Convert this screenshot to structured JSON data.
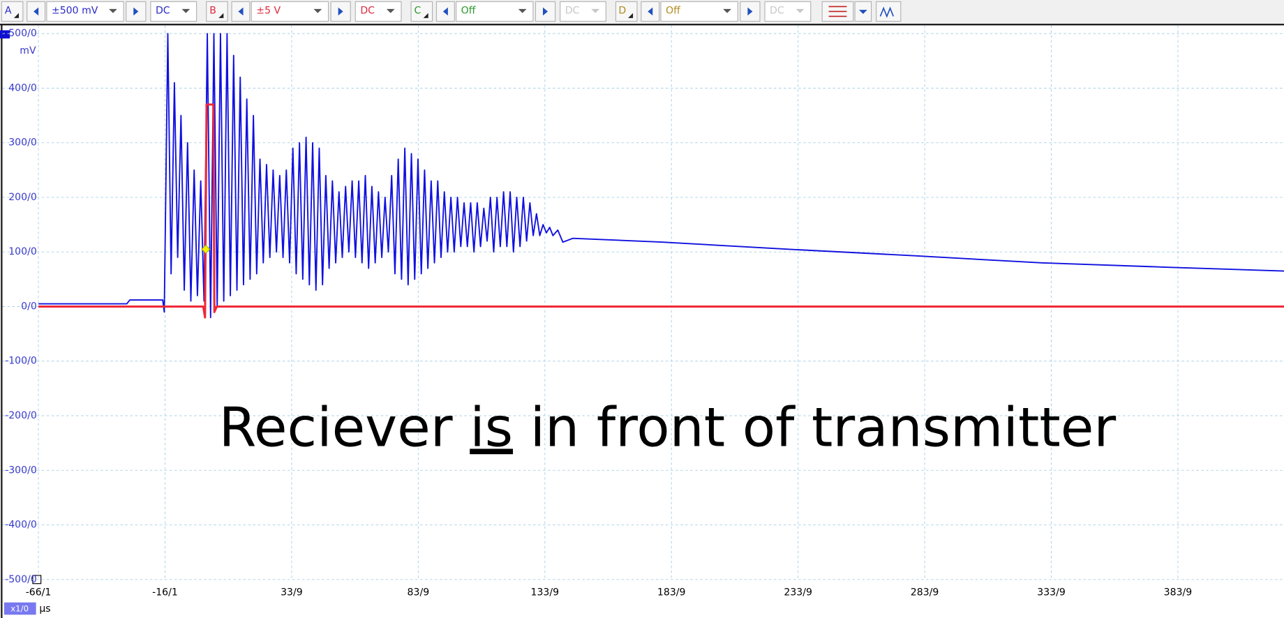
{
  "toolbar": {
    "channels": [
      {
        "name": "A",
        "range": "±500 mV",
        "coupling": "DC",
        "color": "#2a2ac8",
        "enabled": true
      },
      {
        "name": "B",
        "range": "±5 V",
        "coupling": "DC",
        "color": "#e0283c",
        "enabled": true
      },
      {
        "name": "C",
        "range": "Off",
        "coupling": "DC",
        "color": "#2a9a2a",
        "enabled": false
      },
      {
        "name": "D",
        "range": "Off",
        "coupling": "DC",
        "color": "#b08a20",
        "enabled": false
      }
    ]
  },
  "chart_data": {
    "type": "line",
    "y_unit": "mV",
    "x_unit": "μs",
    "zoom": "x1/0",
    "annotation": [
      "Reciever ",
      "is",
      " in front of transmitter"
    ],
    "xlim": [
      -80.3,
      425.8
    ],
    "ylim": [
      -500,
      500
    ],
    "grid": true,
    "xticks": [
      {
        "value": -66.1,
        "label": "-66/1"
      },
      {
        "value": -16.1,
        "label": "-16/1"
      },
      {
        "value": 33.9,
        "label": "33/9"
      },
      {
        "value": 83.9,
        "label": "83/9"
      },
      {
        "value": 133.9,
        "label": "133/9"
      },
      {
        "value": 183.9,
        "label": "183/9"
      },
      {
        "value": 233.9,
        "label": "233/9"
      },
      {
        "value": 283.9,
        "label": "283/9"
      },
      {
        "value": 333.9,
        "label": "333/9"
      },
      {
        "value": 383.9,
        "label": "383/9"
      }
    ],
    "yticks": [
      {
        "value": 500,
        "label": "500/0"
      },
      {
        "value": 400,
        "label": "400/0"
      },
      {
        "value": 300,
        "label": "300/0"
      },
      {
        "value": 200,
        "label": "200/0"
      },
      {
        "value": 100,
        "label": "100/0"
      },
      {
        "value": 0,
        "label": "0/0"
      },
      {
        "value": -100,
        "label": "-100/0"
      },
      {
        "value": -200,
        "label": "-200/0"
      },
      {
        "value": -300,
        "label": "-300/0"
      },
      {
        "value": -400,
        "label": "-400/0"
      },
      {
        "value": -500,
        "label": "-500/0"
      }
    ],
    "series": [
      {
        "name": "A",
        "color": "#1010e0",
        "width": 1.6,
        "x": [
          -66.1,
          -31.2,
          -30.0,
          -17.0,
          -16.4,
          -15.0,
          -13.7,
          -12.4,
          -11.1,
          -9.8,
          -8.5,
          -7.2,
          -5.9,
          -4.6,
          -3.3,
          -2.0,
          -0.7,
          0.6,
          1.9,
          3.2,
          4.5,
          5.8,
          7.1,
          8.4,
          9.7,
          11.0,
          12.3,
          13.6,
          14.9,
          16.2,
          17.5,
          18.8,
          20.1,
          21.4,
          22.7,
          24.0,
          25.3,
          26.6,
          27.9,
          29.2,
          30.5,
          31.8,
          33.1,
          34.4,
          35.7,
          37.0,
          38.3,
          39.6,
          40.9,
          42.2,
          43.5,
          44.8,
          46.1,
          47.4,
          48.7,
          50.0,
          51.3,
          52.6,
          53.9,
          55.2,
          56.5,
          57.8,
          59.1,
          60.4,
          61.7,
          63.0,
          64.3,
          65.6,
          66.9,
          68.2,
          69.5,
          70.8,
          72.1,
          73.4,
          74.7,
          76.0,
          77.3,
          78.6,
          79.9,
          81.2,
          82.5,
          83.8,
          85.1,
          86.4,
          87.7,
          89.0,
          90.3,
          91.6,
          92.9,
          94.2,
          95.5,
          96.8,
          98.1,
          99.4,
          100.7,
          102.0,
          103.3,
          104.6,
          105.9,
          107.2,
          108.5,
          109.8,
          111.1,
          112.4,
          113.7,
          115.0,
          116.3,
          117.6,
          118.9,
          120.2,
          121.5,
          122.8,
          124.1,
          125.4,
          126.7,
          128.0,
          129.3,
          130.6,
          131.9,
          133.2,
          134.5,
          135.8,
          137.1,
          139.0,
          141.0,
          145.0,
          180.0,
          230.0,
          280.0,
          330.0,
          380.0,
          425.8
        ],
        "values": [
          5,
          5,
          12,
          12,
          -10,
          500,
          60,
          410,
          90,
          350,
          30,
          300,
          10,
          250,
          20,
          230,
          10,
          500,
          -20,
          500,
          0,
          500,
          10,
          500,
          20,
          460,
          30,
          420,
          40,
          380,
          50,
          350,
          60,
          270,
          80,
          260,
          90,
          250,
          100,
          240,
          90,
          250,
          80,
          290,
          60,
          300,
          50,
          310,
          40,
          300,
          30,
          290,
          40,
          240,
          70,
          230,
          80,
          210,
          90,
          220,
          100,
          230,
          90,
          230,
          80,
          240,
          70,
          220,
          80,
          210,
          90,
          200,
          100,
          240,
          60,
          270,
          50,
          290,
          40,
          280,
          50,
          270,
          60,
          250,
          70,
          230,
          80,
          230,
          90,
          210,
          100,
          200,
          100,
          200,
          110,
          190,
          110,
          190,
          100,
          190,
          110,
          180,
          120,
          200,
          100,
          200,
          110,
          210,
          110,
          210,
          100,
          200,
          110,
          200,
          120,
          190,
          130,
          170,
          130,
          150,
          135,
          145,
          130,
          140,
          118,
          125,
          118,
          105,
          93,
          80,
          72,
          65
        ]
      },
      {
        "name": "B",
        "color": "#f02838",
        "width": 2.6,
        "x": [
          -66.1,
          -1.0,
          -0.3,
          0.3,
          3.0,
          3.4,
          4.3,
          425.8
        ],
        "values": [
          0,
          0,
          -20,
          370,
          370,
          -10,
          0,
          0
        ]
      }
    ],
    "trigger": {
      "x": 0,
      "y": 105,
      "color": "#f4f000"
    }
  }
}
